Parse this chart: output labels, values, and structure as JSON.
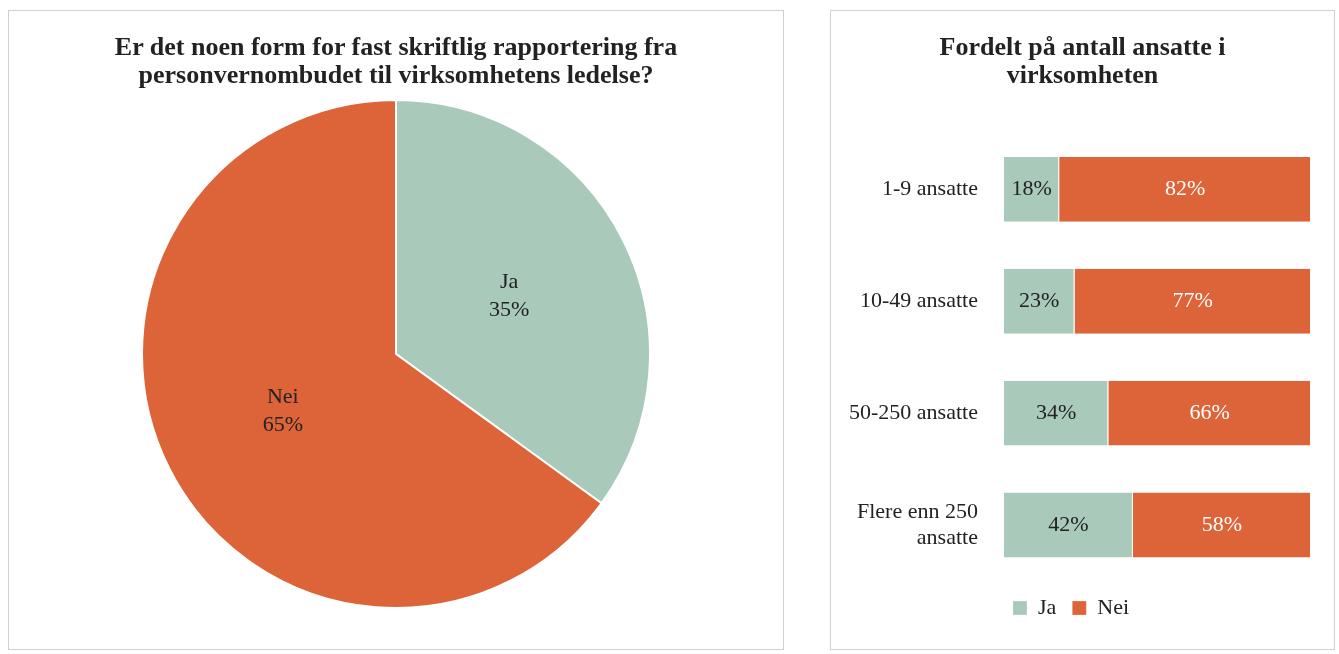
{
  "chart_data": [
    {
      "type": "pie",
      "title": "Er det noen form for fast skriftlig rapportering fra personvernombudet til virksomhetens ledelse?",
      "categories": [
        "Ja",
        "Nei"
      ],
      "values": [
        35,
        65
      ],
      "colors": [
        "#a9c9bb",
        "#dd6339"
      ],
      "value_labels": [
        "35%",
        "65%"
      ],
      "legend": false
    },
    {
      "type": "bar",
      "title": "Fordelt på antall ansatte i virksomheten",
      "orientation": "horizontal",
      "stacked": true,
      "categories": [
        "1-9 ansatte",
        "10-49 ansatte",
        "50-250 ansatte",
        "Flere enn 250 ansatte"
      ],
      "xlim": [
        0,
        100
      ],
      "series": [
        {
          "name": "Ja",
          "color": "#a9c9bb",
          "values": [
            18,
            23,
            34,
            42
          ],
          "value_labels": [
            "18%",
            "23%",
            "34%",
            "42%"
          ]
        },
        {
          "name": "Nei",
          "color": "#dd6339",
          "values": [
            82,
            77,
            66,
            58
          ],
          "value_labels": [
            "82%",
            "77%",
            "66%",
            "58%"
          ]
        }
      ],
      "legend": "bottom"
    }
  ]
}
